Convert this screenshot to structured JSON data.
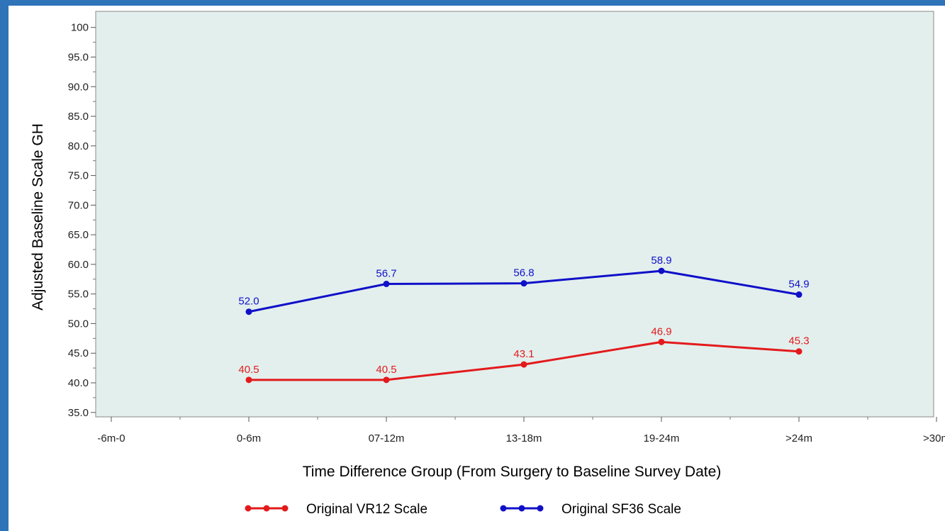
{
  "chart_data": {
    "type": "line",
    "xlabel": "Time Difference Group (From Surgery to Baseline Survey Date)",
    "ylabel": "Adjusted Baseline Scale GH",
    "categories": [
      "-6m-0",
      "0-6m",
      "07-12m",
      "13-18m",
      "19-24m",
      ">24m",
      ">30m"
    ],
    "ylim": [
      33,
      100
    ],
    "yticks": [
      35,
      40,
      45,
      50,
      55,
      60,
      65,
      70,
      75,
      80,
      85,
      90,
      95,
      100
    ],
    "ytick_labels": [
      "35.0",
      "40.0",
      "45.0",
      "50.0",
      "55.0",
      "60.0",
      "65.0",
      "70.0",
      "75.0",
      "80.0",
      "85.0",
      "90.0",
      "95.0",
      "100"
    ],
    "grid": false,
    "plot_background": "#e3efed",
    "legend_position": "bottom",
    "series": [
      {
        "name": "Original VR12 Scale",
        "color": "#e31a1c",
        "x": [
          "0-6m",
          "07-12m",
          "13-18m",
          "19-24m",
          ">24m"
        ],
        "values": [
          40.5,
          40.5,
          43.1,
          46.9,
          45.3
        ],
        "labels": [
          "40.5",
          "40.5",
          "43.1",
          "46.9",
          "45.3"
        ]
      },
      {
        "name": "Original SF36 Scale",
        "color": "#1010c8",
        "x": [
          "0-6m",
          "07-12m",
          "13-18m",
          "19-24m",
          ">24m"
        ],
        "values": [
          52.0,
          56.7,
          56.8,
          58.9,
          54.9
        ],
        "labels": [
          "52.0",
          "56.7",
          "56.8",
          "58.9",
          "54.9"
        ]
      }
    ]
  }
}
